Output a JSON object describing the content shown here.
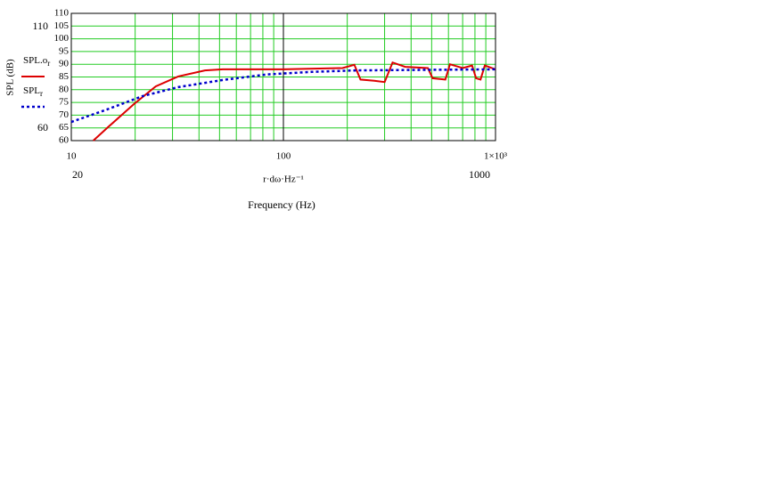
{
  "chart_data": {
    "type": "line",
    "y_label": "SPL (dB)",
    "x_label": "r·dω·Hz⁻¹",
    "x_title": "Frequency (Hz)",
    "xlog": true,
    "xlim": [
      10,
      1000
    ],
    "xticks": [
      10,
      100,
      {
        "value": 1000,
        "label": "1×10³"
      }
    ],
    "xminor": [
      20,
      30,
      40,
      50,
      60,
      70,
      80,
      90,
      200,
      300,
      400,
      500,
      600,
      700,
      800,
      900
    ],
    "ylim": [
      60,
      110
    ],
    "yticks": [
      60,
      65,
      70,
      75,
      80,
      85,
      90,
      95,
      100,
      105,
      110
    ],
    "grid": true,
    "grid_color": "#22cc22",
    "annotations": [
      "110",
      "60",
      "20",
      "1000"
    ],
    "series": [
      {
        "name": "SPL.o",
        "name_sub": "r",
        "color": "#dd0000",
        "dash": false,
        "x": [
          12.7,
          15,
          19.7,
          25,
          31.9,
          42.7,
          51.8,
          100,
          190,
          216,
          231,
          268,
          300,
          327,
          375,
          480,
          505,
          580,
          610,
          700,
          775,
          810,
          850,
          890,
          1000
        ],
        "values": [
          60,
          65.5,
          74.3,
          81.3,
          85.2,
          87.6,
          88,
          88,
          88.5,
          89.8,
          84,
          83.5,
          83,
          90.7,
          89,
          88.5,
          84.5,
          84,
          90,
          88.5,
          89.5,
          84.5,
          84,
          89.5,
          88
        ]
      },
      {
        "name": "SPL",
        "name_sub": "r",
        "color": "#0000cc",
        "dash": true,
        "x": [
          10,
          14.7,
          21.7,
          31.9,
          51.8,
          84,
          136,
          220,
          1000
        ],
        "values": [
          67.3,
          72.2,
          77.5,
          81,
          83.8,
          86,
          87,
          87.6,
          88
        ]
      }
    ]
  }
}
